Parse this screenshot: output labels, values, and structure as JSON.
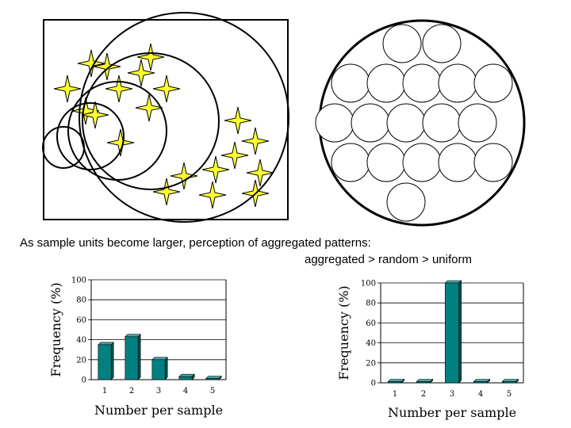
{
  "diagram": {
    "left_panel": "sample units of increasing size over a clustered (aggregated) pattern of star-shaped points",
    "right_panel": "circle filled with equal-size sample unit circles (uniform pattern)"
  },
  "caption": {
    "line1": "As sample units become larger,  perception of aggregated patterns:",
    "line2": "aggregated > random > uniform"
  },
  "colors": {
    "star_fill": "#ffff33",
    "bar_fill": "#008080",
    "bar_side": "#005050",
    "bar_top": "#4da6a6"
  },
  "chart_data": [
    {
      "type": "bar",
      "categories": [
        "1",
        "2",
        "3",
        "4",
        "5"
      ],
      "values": [
        35,
        43,
        20,
        3,
        1
      ],
      "ylim": [
        0,
        100
      ],
      "yticks": [
        "0",
        "20",
        "40",
        "60",
        "80",
        "100"
      ],
      "xlabel": "Number per sample",
      "ylabel": "Frequency (%)",
      "grid": true
    },
    {
      "type": "bar",
      "categories": [
        "1",
        "2",
        "3",
        "4",
        "5"
      ],
      "values": [
        0,
        0,
        100,
        0,
        0
      ],
      "ylim": [
        0,
        100
      ],
      "yticks": [
        "0",
        "20",
        "40",
        "60",
        "80",
        "100"
      ],
      "xlabel": "Number per sample",
      "ylabel": "Frequency (%)",
      "grid": true
    }
  ]
}
